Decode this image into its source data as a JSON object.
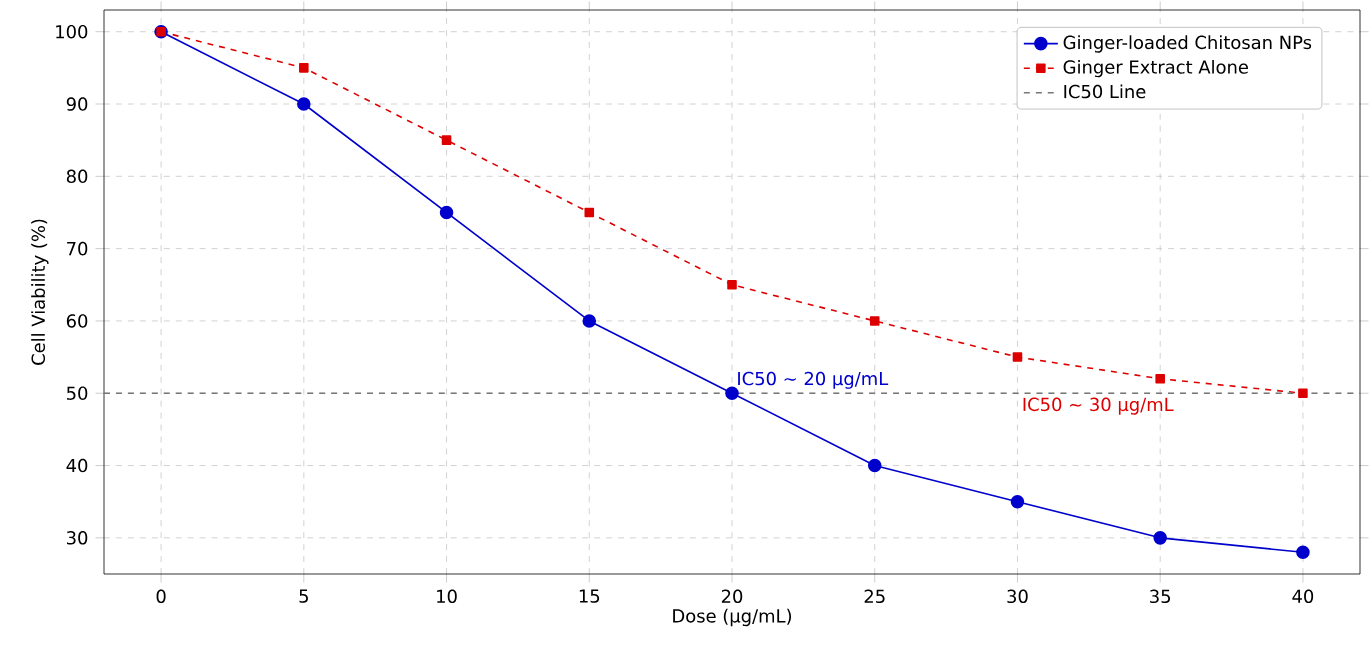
{
  "chart_data": {
    "type": "line",
    "xlabel": "Dose (µg/mL)",
    "ylabel": "Cell Viability (%)",
    "x": [
      0,
      5,
      10,
      15,
      20,
      25,
      30,
      35,
      40
    ],
    "series": [
      {
        "name": "Ginger-loaded Chitosan NPs",
        "color": "#0000cc",
        "marker": "circle",
        "line_style": "solid",
        "values": [
          100,
          90,
          75,
          60,
          50,
          40,
          35,
          30,
          28
        ]
      },
      {
        "name": "Ginger Extract Alone",
        "color": "#dd0000",
        "marker": "square",
        "line_style": "dashed",
        "values": [
          100,
          95,
          85,
          75,
          65,
          60,
          55,
          52,
          50
        ]
      }
    ],
    "ref_lines": [
      {
        "axis": "y",
        "value": 50,
        "label": "IC50 Line",
        "color": "#777777",
        "line_style": "dashed"
      }
    ],
    "annotations": [
      {
        "text": "IC50 ~ 20 µg/mL",
        "x": 20,
        "y": 50
      },
      {
        "text": "IC50 ~ 30 µg/mL",
        "x": 30,
        "y": 50
      }
    ],
    "xlim": [
      -2,
      42
    ],
    "ylim": [
      25,
      103
    ],
    "xticks": [
      0,
      5,
      10,
      15,
      20,
      25,
      30,
      35,
      40
    ],
    "yticks": [
      30,
      40,
      50,
      60,
      70,
      80,
      90,
      100
    ],
    "grid": true,
    "legend": "top right"
  }
}
